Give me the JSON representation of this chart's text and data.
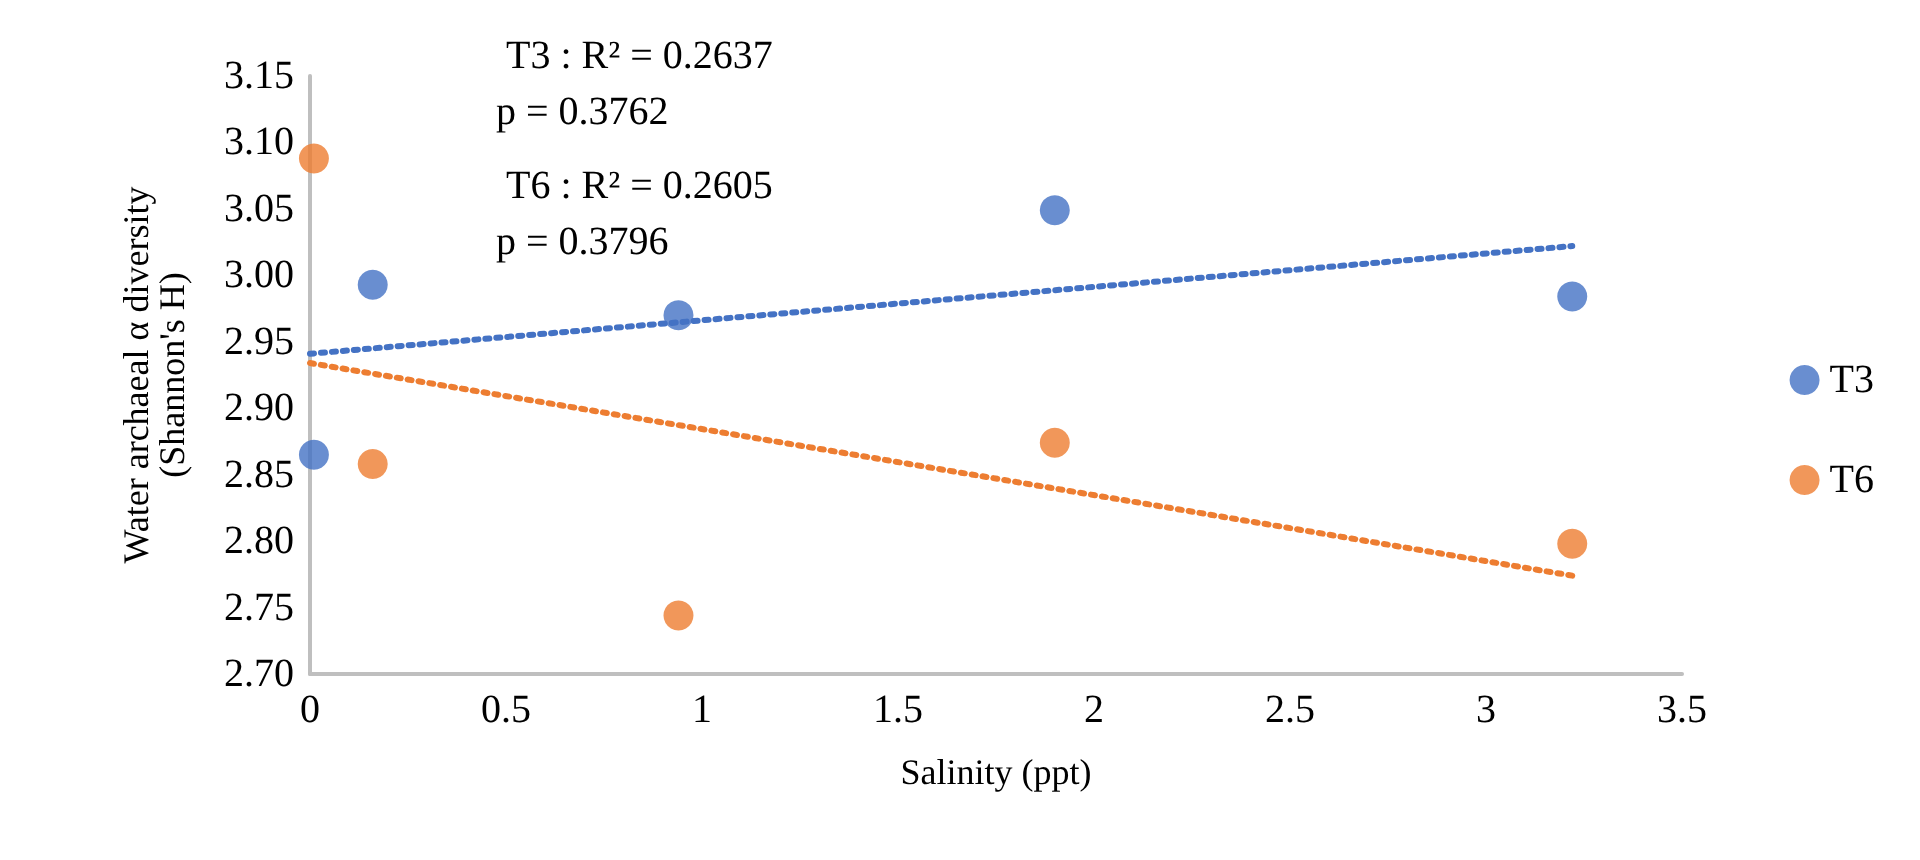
{
  "chart_data": {
    "type": "scatter",
    "xlabel": "Salinity (ppt)",
    "ylabel": "Water archaeal α diversity\n(Shannon's H)",
    "xlim": [
      0,
      3.5
    ],
    "xticks": [
      0,
      0.5,
      1,
      1.5,
      2,
      2.5,
      3,
      3.5
    ],
    "ylim": [
      2.7,
      3.15
    ],
    "yticks": [
      {
        "value": 2.7,
        "label": "2.70"
      },
      {
        "value": 2.75,
        "label": "2.75"
      },
      {
        "value": 2.8,
        "label": "2.80"
      },
      {
        "value": 2.85,
        "label": "2.85"
      },
      {
        "value": 2.9,
        "label": "2.90"
      },
      {
        "value": 2.95,
        "label": "2.95"
      },
      {
        "value": 3.0,
        "label": "3.00"
      },
      {
        "value": 3.05,
        "label": "3.05"
      },
      {
        "value": 3.1,
        "label": "3.10"
      },
      {
        "value": 3.15,
        "label": "3.15"
      }
    ],
    "grid": false,
    "legend": "right",
    "marker": "circle",
    "annotations": [
      "T3 : R² = 0.2637",
      "p = 0.3762",
      "T6 : R² = 0.2605",
      "p = 0.3796"
    ],
    "series": [
      {
        "name": "T3",
        "color": "#4472c4",
        "x": [
          0.01,
          0.16,
          0.94,
          1.9,
          3.22
        ],
        "values": [
          2.865,
          2.993,
          2.97,
          3.049,
          2.984
        ]
      },
      {
        "name": "T6",
        "color": "#ed7d31",
        "x": [
          0.01,
          0.16,
          0.94,
          1.9,
          3.22
        ],
        "values": [
          3.088,
          2.858,
          2.744,
          2.874,
          2.798
        ]
      },
      {
        "type": "line",
        "color": "#4472c4",
        "line_style": "dotted",
        "marker": "none",
        "x": [
          0,
          3.22
        ],
        "values": [
          2.941,
          3.022
        ]
      },
      {
        "type": "line",
        "color": "#ed7d31",
        "line_style": "dotted",
        "marker": "none",
        "x": [
          0,
          3.22
        ],
        "values": [
          2.934,
          2.774
        ]
      }
    ]
  }
}
